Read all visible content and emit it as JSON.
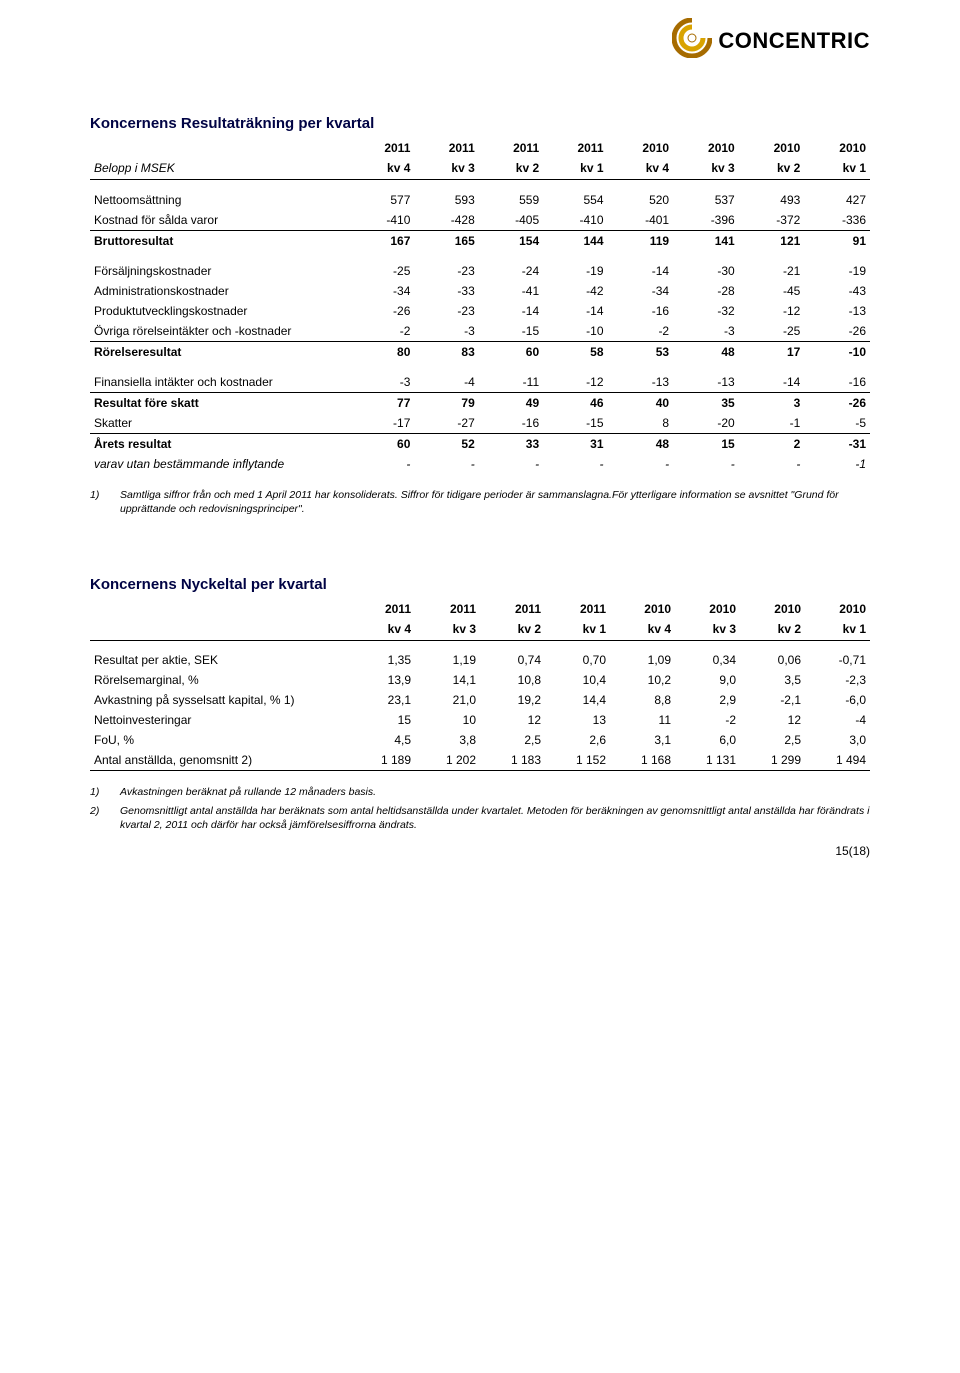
{
  "brand": {
    "name": "CONCENTRIC"
  },
  "table1": {
    "title": "Koncernens Resultaträkning per kvartal",
    "row_label_header": "Belopp i MSEK",
    "years": [
      "2011",
      "2011",
      "2011",
      "2011",
      "2010",
      "2010",
      "2010",
      "2010"
    ],
    "quarters": [
      "kv 4",
      "kv 3",
      "kv 2",
      "kv 1",
      "kv 4",
      "kv 3",
      "kv 2",
      "kv 1"
    ],
    "rows": [
      {
        "label": "Nettoomsättning",
        "vals": [
          "577",
          "593",
          "559",
          "554",
          "520",
          "537",
          "493",
          "427"
        ]
      },
      {
        "label": "Kostnad för sålda varor",
        "vals": [
          "-410",
          "-428",
          "-405",
          "-410",
          "-401",
          "-396",
          "-372",
          "-336"
        ],
        "line_below": true
      },
      {
        "label": "Bruttoresultat",
        "vals": [
          "167",
          "165",
          "154",
          "144",
          "119",
          "141",
          "121",
          "91"
        ],
        "bold": true,
        "line_above": true,
        "spacer_after": true
      },
      {
        "label": "Försäljningskostnader",
        "vals": [
          "-25",
          "-23",
          "-24",
          "-19",
          "-14",
          "-30",
          "-21",
          "-19"
        ]
      },
      {
        "label": "Administrationskostnader",
        "vals": [
          "-34",
          "-33",
          "-41",
          "-42",
          "-34",
          "-28",
          "-45",
          "-43"
        ]
      },
      {
        "label": "Produktutvecklingskostnader",
        "vals": [
          "-26",
          "-23",
          "-14",
          "-14",
          "-16",
          "-32",
          "-12",
          "-13"
        ]
      },
      {
        "label": "Övriga rörelseintäkter och -kostnader",
        "vals": [
          "-2",
          "-3",
          "-15",
          "-10",
          "-2",
          "-3",
          "-25",
          "-26"
        ]
      },
      {
        "label": "Rörelseresultat",
        "vals": [
          "80",
          "83",
          "60",
          "58",
          "53",
          "48",
          "17",
          "-10"
        ],
        "bold": true,
        "line_above": true,
        "spacer_after": true
      },
      {
        "label": "Finansiella intäkter och kostnader",
        "vals": [
          "-3",
          "-4",
          "-11",
          "-12",
          "-13",
          "-13",
          "-14",
          "-16"
        ]
      },
      {
        "label": "Resultat före skatt",
        "vals": [
          "77",
          "79",
          "49",
          "46",
          "40",
          "35",
          "3",
          "-26"
        ],
        "bold": true,
        "line_above": true
      },
      {
        "label": "Skatter",
        "vals": [
          "-17",
          "-27",
          "-16",
          "-15",
          "8",
          "-20",
          "-1",
          "-5"
        ]
      },
      {
        "label": "Årets resultat",
        "vals": [
          "60",
          "52",
          "33",
          "31",
          "48",
          "15",
          "2",
          "-31"
        ],
        "bold": true,
        "line_above": true
      },
      {
        "label": "varav utan bestämmande inflytande",
        "vals": [
          "-",
          "-",
          "-",
          "-",
          "-",
          "-",
          "-",
          "-1"
        ],
        "italic": true
      }
    ],
    "footnotes": [
      {
        "n": "1)",
        "text": "Samtliga siffror från och med 1 April 2011 har konsoliderats. Siffror för tidigare perioder är sammanslagna.För ytterligare information se avsnittet \"Grund för upprättande och redovisningsprinciper\"."
      }
    ]
  },
  "table2": {
    "title": "Koncernens Nyckeltal per kvartal",
    "row_label_header": "",
    "years": [
      "2011",
      "2011",
      "2011",
      "2011",
      "2010",
      "2010",
      "2010",
      "2010"
    ],
    "quarters": [
      "kv 4",
      "kv 3",
      "kv 2",
      "kv 1",
      "kv 4",
      "kv 3",
      "kv 2",
      "kv 1"
    ],
    "rows": [
      {
        "label": "Resultat per aktie, SEK",
        "vals": [
          "1,35",
          "1,19",
          "0,74",
          "0,70",
          "1,09",
          "0,34",
          "0,06",
          "-0,71"
        ]
      },
      {
        "label": "Rörelsemarginal, %",
        "vals": [
          "13,9",
          "14,1",
          "10,8",
          "10,4",
          "10,2",
          "9,0",
          "3,5",
          "-2,3"
        ]
      },
      {
        "label": "Avkastning på sysselsatt kapital, % 1)",
        "vals": [
          "23,1",
          "21,0",
          "19,2",
          "14,4",
          "8,8",
          "2,9",
          "-2,1",
          "-6,0"
        ]
      },
      {
        "label": "Nettoinvesteringar",
        "vals": [
          "15",
          "10",
          "12",
          "13",
          "11",
          "-2",
          "12",
          "-4"
        ]
      },
      {
        "label": "FoU, %",
        "vals": [
          "4,5",
          "3,8",
          "2,5",
          "2,6",
          "3,1",
          "6,0",
          "2,5",
          "3,0"
        ]
      },
      {
        "label": "Antal anställda, genomsnitt 2)",
        "vals": [
          "1 189",
          "1 202",
          "1 183",
          "1 152",
          "1 168",
          "1 131",
          "1 299",
          "1 494"
        ],
        "line_below": true
      }
    ],
    "footnotes": [
      {
        "n": "1)",
        "text": "Avkastningen beräknat på rullande 12 månaders basis."
      },
      {
        "n": "2)",
        "text": "Genomsnittligt antal anställda har beräknats som antal heltidsanställda under kvartalet. Metoden för beräkningen av genomsnittligt antal anställda har förändrats i kvartal 2, 2011 och därför har också jämförelsesiffrorna ändrats."
      }
    ]
  },
  "page_number": "15(18)",
  "colors": {
    "title": "#000344",
    "rule": "#000000",
    "text": "#000000",
    "bg": "#ffffff",
    "logo_outer": "#a66b00",
    "logo_inner": "#d9a300",
    "logo_white": "#ffffff"
  }
}
